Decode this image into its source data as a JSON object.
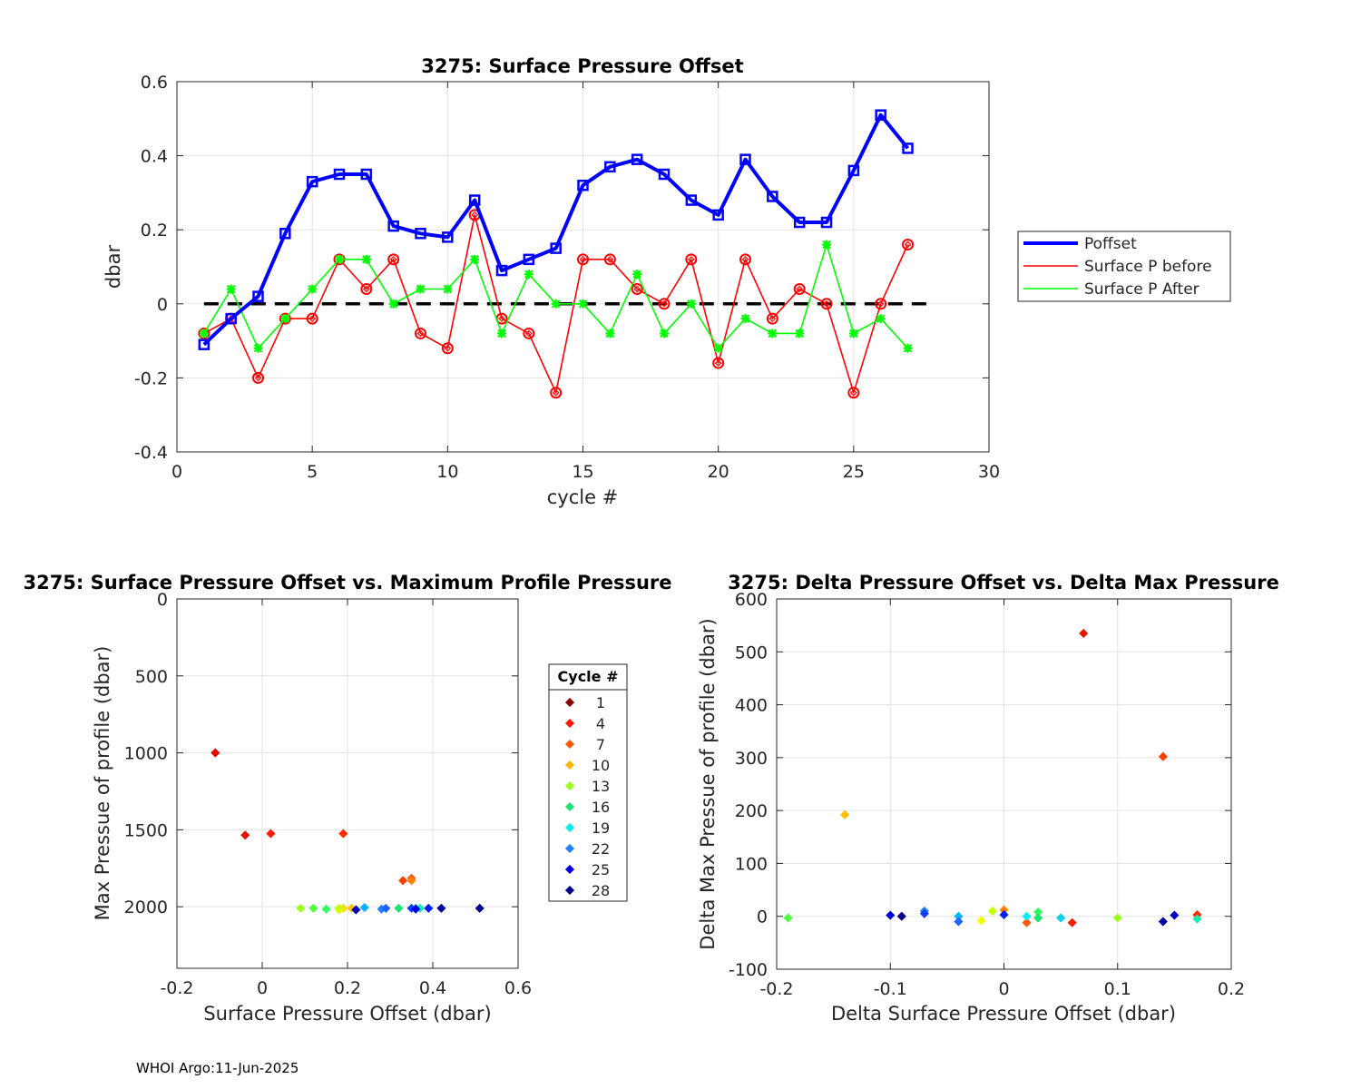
{
  "footer": "WHOI Argo:11-Jun-2025",
  "chart_data": [
    {
      "type": "line",
      "title": "3275: Surface Pressure Offset",
      "xlabel": "cycle #",
      "ylabel": "dbar",
      "xlim": [
        0,
        30
      ],
      "ylim": [
        -0.4,
        0.6
      ],
      "xticks": [
        "0",
        "5",
        "10",
        "15",
        "20",
        "25",
        "30"
      ],
      "yticks": [
        "-0.4",
        "-0.2",
        "0",
        "0.2",
        "0.4",
        "0.6"
      ],
      "grid": true,
      "legend_position": "right",
      "x": [
        1,
        2,
        3,
        4,
        5,
        6,
        7,
        8,
        9,
        10,
        11,
        12,
        13,
        14,
        15,
        16,
        17,
        18,
        19,
        20,
        21,
        22,
        23,
        24,
        25,
        26,
        27
      ],
      "series": [
        {
          "name": "Poffset",
          "color": "#0000ff",
          "marker": "square",
          "values": [
            -0.11,
            -0.04,
            0.02,
            0.19,
            0.33,
            0.35,
            0.35,
            0.21,
            0.19,
            0.18,
            0.28,
            0.09,
            0.12,
            0.15,
            0.32,
            0.37,
            0.39,
            0.35,
            0.28,
            0.24,
            0.39,
            0.29,
            0.22,
            0.22,
            0.36,
            0.51,
            0.42
          ]
        },
        {
          "name": "Surface P before",
          "color": "#ff0000",
          "marker": "diamond",
          "values": [
            -0.08,
            -0.04,
            -0.2,
            -0.04,
            -0.04,
            0.12,
            0.04,
            0.12,
            -0.08,
            -0.12,
            0.24,
            -0.04,
            -0.08,
            -0.24,
            0.12,
            0.12,
            0.04,
            0.0,
            0.12,
            -0.16,
            0.12,
            -0.04,
            0.04,
            0.0,
            -0.24,
            0.0,
            0.16
          ]
        },
        {
          "name": "Surface P After",
          "color": "#00ff00",
          "marker": "star",
          "values": [
            -0.08,
            0.04,
            -0.12,
            -0.04,
            0.04,
            0.12,
            0.12,
            0.0,
            0.04,
            0.04,
            0.12,
            -0.08,
            0.08,
            0.0,
            0.0,
            -0.08,
            0.08,
            -0.08,
            0.0,
            -0.12,
            -0.04,
            -0.08,
            -0.08,
            0.16,
            -0.08,
            -0.04,
            -0.12
          ]
        }
      ],
      "reference_line": {
        "y": 0,
        "x_range": [
          1,
          28
        ],
        "style": "dashed",
        "color": "#000000"
      }
    },
    {
      "type": "scatter",
      "title": "3275: Surface Pressure Offset vs. Maximum Profile Pressure",
      "xlabel": "Surface Pressure Offset (dbar)",
      "ylabel": "Max Pressue of profile (dbar)",
      "xlim": [
        -0.2,
        0.6
      ],
      "ylim": [
        2400,
        0
      ],
      "y_reversed": true,
      "xticks": [
        "-0.2",
        "0",
        "0.2",
        "0.4",
        "0.6"
      ],
      "yticks": [
        "0",
        "500",
        "1000",
        "1500",
        "2000"
      ],
      "grid": true,
      "legend": {
        "title": "Cycle #",
        "entries": [
          "1",
          "4",
          "7",
          "10",
          "13",
          "16",
          "19",
          "22",
          "25",
          "28"
        ],
        "colors": [
          "#8b0000",
          "#ff1a00",
          "#ff5a0a",
          "#ffb400",
          "#9cff1a",
          "#1ae66e",
          "#00f0f0",
          "#1e82ff",
          "#0000e6",
          "#00008b"
        ]
      },
      "points": [
        {
          "x": -0.11,
          "y": 1000,
          "color": "#e60000"
        },
        {
          "x": -0.04,
          "y": 1535,
          "color": "#e61400"
        },
        {
          "x": 0.02,
          "y": 1525,
          "color": "#ff1a00"
        },
        {
          "x": 0.19,
          "y": 1525,
          "color": "#ff2800"
        },
        {
          "x": 0.33,
          "y": 1830,
          "color": "#ff4000"
        },
        {
          "x": 0.35,
          "y": 1815,
          "color": "#ff5a0a"
        },
        {
          "x": 0.35,
          "y": 1830,
          "color": "#ff8000"
        },
        {
          "x": 0.21,
          "y": 2010,
          "color": "#ffc000"
        },
        {
          "x": 0.19,
          "y": 2010,
          "color": "#ffd800"
        },
        {
          "x": 0.18,
          "y": 2020,
          "color": "#f0ff00"
        },
        {
          "x": 0.18,
          "y": 2010,
          "color": "#c8ff00"
        },
        {
          "x": 0.09,
          "y": 2010,
          "color": "#9cff1a"
        },
        {
          "x": 0.12,
          "y": 2010,
          "color": "#50ff40"
        },
        {
          "x": 0.15,
          "y": 2015,
          "color": "#30ff60"
        },
        {
          "x": 0.32,
          "y": 2010,
          "color": "#1ae66e"
        },
        {
          "x": 0.37,
          "y": 2010,
          "color": "#10f0b0"
        },
        {
          "x": 0.36,
          "y": 2010,
          "color": "#00f0f0"
        },
        {
          "x": 0.24,
          "y": 2005,
          "color": "#00b4ff"
        },
        {
          "x": 0.28,
          "y": 2015,
          "color": "#1e82ff"
        },
        {
          "x": 0.29,
          "y": 2010,
          "color": "#1e64ff"
        },
        {
          "x": 0.35,
          "y": 2010,
          "color": "#1040ff"
        },
        {
          "x": 0.39,
          "y": 2010,
          "color": "#0020f0"
        },
        {
          "x": 0.36,
          "y": 2015,
          "color": "#0000e6"
        },
        {
          "x": 0.22,
          "y": 2020,
          "color": "#0000c0"
        },
        {
          "x": 0.42,
          "y": 2010,
          "color": "#0000a0"
        },
        {
          "x": 0.51,
          "y": 2010,
          "color": "#00008b"
        }
      ]
    },
    {
      "type": "scatter",
      "title": "3275: Delta Pressure Offset vs. Delta Max Pressure",
      "xlabel": "Delta Surface Pressure Offset (dbar)",
      "ylabel": "Delta Max Pressue of profile (dbar)",
      "xlim": [
        -0.2,
        0.2
      ],
      "ylim": [
        -100,
        600
      ],
      "xticks": [
        "-0.2",
        "-0.1",
        "0",
        "0.1",
        "0.2"
      ],
      "yticks": [
        "-100",
        "0",
        "100",
        "200",
        "300",
        "400",
        "500",
        "600"
      ],
      "grid": true,
      "points": [
        {
          "x": 0.07,
          "y": 535,
          "color": "#e61400"
        },
        {
          "x": 0.06,
          "y": -12,
          "color": "#ff1a00"
        },
        {
          "x": 0.17,
          "y": 3,
          "color": "#ff2800"
        },
        {
          "x": 0.14,
          "y": 302,
          "color": "#ff4000"
        },
        {
          "x": 0.02,
          "y": -12,
          "color": "#ff5a0a"
        },
        {
          "x": 0.0,
          "y": 12,
          "color": "#ff8000"
        },
        {
          "x": -0.14,
          "y": 192,
          "color": "#ffc000"
        },
        {
          "x": -0.02,
          "y": -8,
          "color": "#f0ff00"
        },
        {
          "x": -0.01,
          "y": 10,
          "color": "#c8ff00"
        },
        {
          "x": 0.1,
          "y": -3,
          "color": "#9cff1a"
        },
        {
          "x": -0.19,
          "y": -3,
          "color": "#50ff40"
        },
        {
          "x": 0.03,
          "y": 8,
          "color": "#30ff60"
        },
        {
          "x": 0.03,
          "y": -3,
          "color": "#1ae66e"
        },
        {
          "x": 0.17,
          "y": -5,
          "color": "#10f0b0"
        },
        {
          "x": 0.02,
          "y": 0,
          "color": "#00f0f0"
        },
        {
          "x": 0.05,
          "y": -3,
          "color": "#00d4f0"
        },
        {
          "x": -0.04,
          "y": 0,
          "color": "#00b4ff"
        },
        {
          "x": -0.07,
          "y": 10,
          "color": "#1e82ff"
        },
        {
          "x": -0.04,
          "y": -10,
          "color": "#1e64ff"
        },
        {
          "x": -0.07,
          "y": 5,
          "color": "#1040ff"
        },
        {
          "x": 0.0,
          "y": 3,
          "color": "#0020f0"
        },
        {
          "x": -0.1,
          "y": 2,
          "color": "#0000e6"
        },
        {
          "x": 0.15,
          "y": 2,
          "color": "#0000c0"
        },
        {
          "x": 0.14,
          "y": -10,
          "color": "#0000a0"
        },
        {
          "x": -0.09,
          "y": 0,
          "color": "#00008b"
        }
      ]
    }
  ]
}
